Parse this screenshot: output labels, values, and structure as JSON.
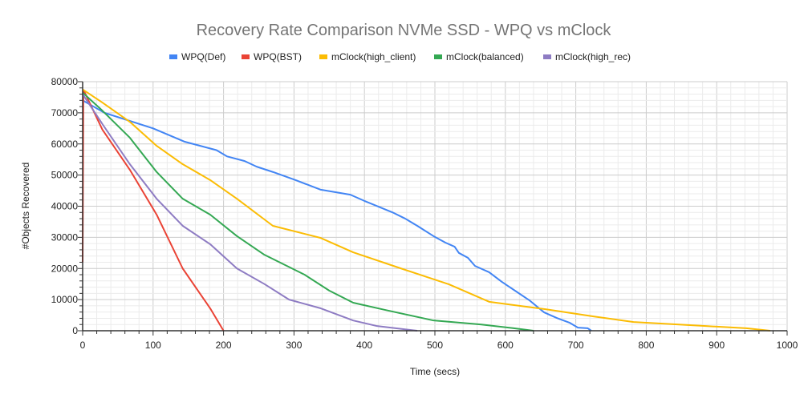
{
  "chart_data": {
    "type": "line",
    "title": "Recovery Rate Comparison  NVMe SSD - WPQ vs mClock",
    "xlabel": "Time (secs)",
    "ylabel": "#Objects Recovered",
    "xlim": [
      0,
      1000
    ],
    "ylim": [
      0,
      80000
    ],
    "x_ticks": [
      "0",
      "100",
      "200",
      "300",
      "400",
      "500",
      "600",
      "700",
      "800",
      "900",
      "1000"
    ],
    "y_ticks": [
      "0",
      "10000",
      "20000",
      "30000",
      "40000",
      "50000",
      "60000",
      "70000",
      "80000"
    ],
    "grid": true,
    "legend_position": "top",
    "series": [
      {
        "name": "WPQ(Def)",
        "color": "#4285F4",
        "points": [
          [
            0,
            74000
          ],
          [
            31,
            70000
          ],
          [
            100,
            65000
          ],
          [
            145,
            60700
          ],
          [
            190,
            58000
          ],
          [
            205,
            56000
          ],
          [
            230,
            54500
          ],
          [
            247,
            52700
          ],
          [
            270,
            51000
          ],
          [
            302,
            48400
          ],
          [
            338,
            45300
          ],
          [
            380,
            43700
          ],
          [
            400,
            41700
          ],
          [
            440,
            38000
          ],
          [
            458,
            36000
          ],
          [
            475,
            33700
          ],
          [
            498,
            30400
          ],
          [
            515,
            28300
          ],
          [
            528,
            27000
          ],
          [
            534,
            25000
          ],
          [
            547,
            23400
          ],
          [
            557,
            20800
          ],
          [
            577,
            18800
          ],
          [
            595,
            15700
          ],
          [
            634,
            9800
          ],
          [
            655,
            5900
          ],
          [
            673,
            4100
          ],
          [
            691,
            2600
          ],
          [
            703,
            1000
          ],
          [
            717,
            800
          ],
          [
            722,
            0
          ]
        ]
      },
      {
        "name": "WPQ(BST)",
        "color": "#EA4335",
        "points": [
          [
            0,
            22000
          ],
          [
            1,
            77000
          ],
          [
            2,
            77000
          ],
          [
            28,
            64600
          ],
          [
            67,
            51700
          ],
          [
            105,
            37300
          ],
          [
            142,
            20000
          ],
          [
            181,
            7200
          ],
          [
            200,
            0
          ]
        ]
      },
      {
        "name": "mClock(high_client)",
        "color": "#FBBC04",
        "points": [
          [
            0,
            77500
          ],
          [
            28,
            73300
          ],
          [
            67,
            67100
          ],
          [
            105,
            59400
          ],
          [
            142,
            53500
          ],
          [
            181,
            48400
          ],
          [
            219,
            42400
          ],
          [
            270,
            33700
          ],
          [
            338,
            29800
          ],
          [
            384,
            25200
          ],
          [
            452,
            20000
          ],
          [
            520,
            14900
          ],
          [
            577,
            9300
          ],
          [
            657,
            6900
          ],
          [
            725,
            4600
          ],
          [
            782,
            2800
          ],
          [
            885,
            1500
          ],
          [
            942,
            800
          ],
          [
            976,
            0
          ]
        ]
      },
      {
        "name": "mClock(balanced)",
        "color": "#34A853",
        "points": [
          [
            0,
            76500
          ],
          [
            28,
            70700
          ],
          [
            67,
            62000
          ],
          [
            105,
            51000
          ],
          [
            142,
            42400
          ],
          [
            181,
            37300
          ],
          [
            219,
            30400
          ],
          [
            258,
            24400
          ],
          [
            315,
            18000
          ],
          [
            350,
            12900
          ],
          [
            384,
            9000
          ],
          [
            429,
            6700
          ],
          [
            498,
            3300
          ],
          [
            566,
            2000
          ],
          [
            612,
            800
          ],
          [
            640,
            0
          ]
        ]
      },
      {
        "name": "mClock(high_rec)",
        "color": "#8E7CC3",
        "points": [
          [
            0,
            76000
          ],
          [
            28,
            66400
          ],
          [
            67,
            53500
          ],
          [
            105,
            42400
          ],
          [
            142,
            33700
          ],
          [
            181,
            27800
          ],
          [
            219,
            20000
          ],
          [
            258,
            15000
          ],
          [
            293,
            10000
          ],
          [
            338,
            7200
          ],
          [
            384,
            3300
          ],
          [
            418,
            1500
          ],
          [
            475,
            0
          ]
        ]
      }
    ]
  }
}
